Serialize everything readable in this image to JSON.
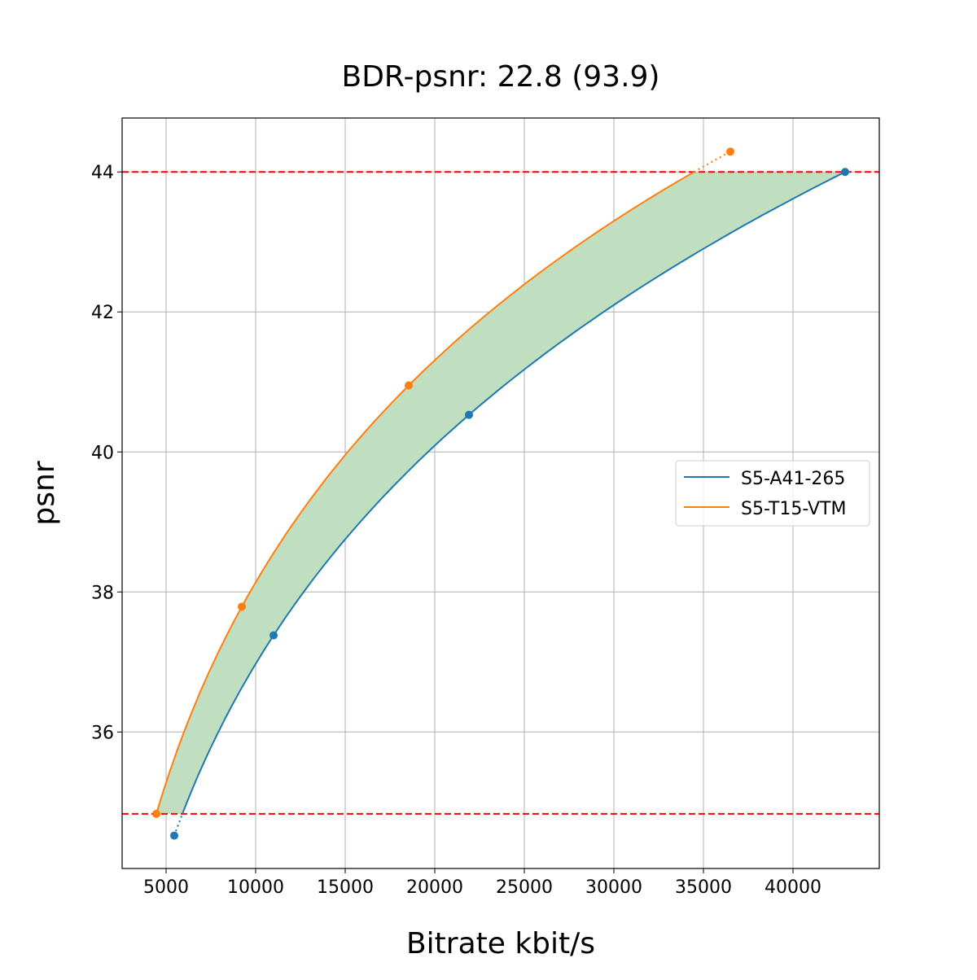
{
  "chart_data": {
    "type": "line",
    "title": "BDR-psnr: 22.8 (93.9)",
    "xlabel": "Bitrate kbit/s",
    "ylabel": "psnr",
    "xlim": [
      2545,
      44818
    ],
    "ylim": [
      34.05,
      44.77
    ],
    "xticks": [
      5000,
      10000,
      15000,
      20000,
      25000,
      30000,
      35000,
      40000
    ],
    "yticks": [
      36,
      38,
      40,
      42,
      44
    ],
    "grid": true,
    "legend_position": "center-right",
    "series": [
      {
        "name": "S5-A41-265",
        "color": "#1f77b4",
        "x": [
          5455,
          11000,
          21909,
          42909
        ],
        "y": [
          34.52,
          37.38,
          40.53,
          44.0
        ]
      },
      {
        "name": "S5-T15-VTM",
        "color": "#ff7f0e",
        "x": [
          4455,
          9227,
          18545,
          36500
        ],
        "y": [
          34.83,
          37.79,
          40.95,
          44.29
        ]
      }
    ],
    "reference_lines": {
      "y": [
        34.83,
        44.0
      ],
      "color": "#ff0000",
      "style": "dashed"
    },
    "fill_between": {
      "color": "#c0dfc0",
      "y_range": [
        34.83,
        44.0
      ]
    }
  }
}
